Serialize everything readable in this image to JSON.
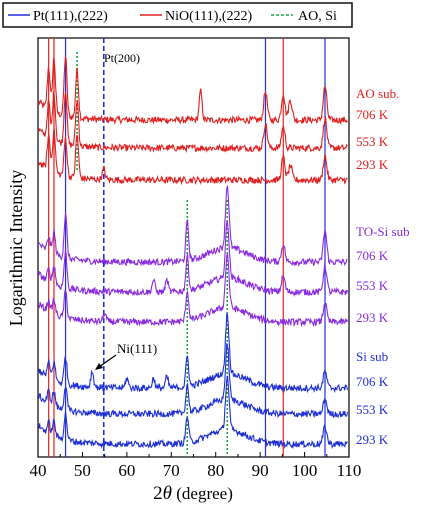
{
  "chart_data": {
    "type": "line",
    "xlabel_prefix": "2",
    "xlabel_symbol": "θ",
    "xlabel_suffix": " (degree)",
    "ylabel": "Logarithmic  Intensity",
    "xlim": [
      40,
      110
    ],
    "xticks": [
      40,
      50,
      60,
      70,
      80,
      90,
      100,
      110
    ],
    "y_scale": "log (arbitrary, offset traces)",
    "legend": [
      {
        "label": "Pt(111),(222)",
        "color": "#1f2fd6",
        "style": "solid"
      },
      {
        "label": "NiO(111),(222)",
        "color": "#e02020",
        "style": "solid"
      },
      {
        "label": "AO, Si",
        "color": "#1aa34a",
        "style": "dashed"
      }
    ],
    "reference_lines": [
      {
        "x": 46.2,
        "color": "#1f2fd6",
        "style": "solid",
        "group": "Pt(111),(222)"
      },
      {
        "x": 91.2,
        "color": "#1f2fd6",
        "style": "solid",
        "group": "Pt(111),(222)"
      },
      {
        "x": 104.6,
        "color": "#1f2fd6",
        "style": "solid",
        "group": "Pt(111),(222)"
      },
      {
        "x": 54.8,
        "color": "#1f2fd6",
        "style": "dashed",
        "group": "Pt(200)"
      },
      {
        "x": 42.4,
        "color": "#e02020",
        "style": "solid",
        "group": "NiO(111),(222)"
      },
      {
        "x": 43.6,
        "color": "#e02020",
        "style": "solid",
        "group": "NiO(111),(222)"
      },
      {
        "x": 95.2,
        "color": "#e02020",
        "style": "solid",
        "group": "NiO(111),(222)"
      },
      {
        "x": 48.8,
        "color": "#1aa34a",
        "style": "dashed",
        "group": "AO, Si"
      },
      {
        "x": 73.6,
        "color": "#1aa34a",
        "style": "dashed",
        "group": "AO, Si"
      },
      {
        "x": 82.6,
        "color": "#1aa34a",
        "style": "dashed",
        "group": "AO, Si"
      }
    ],
    "annotations": [
      {
        "text": "Pt(200)",
        "x": 54.8
      },
      {
        "text": "Ni(111)",
        "x": 52.2,
        "arrow": true
      }
    ],
    "groups": [
      {
        "name": "AO sub.",
        "color": "#e02020",
        "traces": [
          {
            "label": "706 K",
            "peaks": [
              [
                42.4,
                3.5
              ],
              [
                43.6,
                4.5
              ],
              [
                46.2,
                5.0
              ],
              [
                48.8,
                4.0
              ],
              [
                76.6,
                2.4
              ],
              [
                91.2,
                2.4
              ],
              [
                95.2,
                2.2
              ],
              [
                96.8,
                1.7
              ],
              [
                104.6,
                2.8
              ]
            ]
          },
          {
            "label": "553 K",
            "peaks": [
              [
                42.4,
                3.0
              ],
              [
                43.6,
                4.0
              ],
              [
                46.2,
                4.5
              ],
              [
                48.8,
                3.8
              ],
              [
                91.2,
                2.0
              ],
              [
                95.2,
                1.8
              ],
              [
                104.6,
                2.5
              ]
            ]
          },
          {
            "label": "293 K",
            "peaks": [
              [
                42.4,
                2.8
              ],
              [
                43.6,
                3.5
              ],
              [
                46.2,
                3.2
              ],
              [
                48.8,
                3.6
              ],
              [
                54.8,
                0.9
              ],
              [
                95.2,
                1.9
              ],
              [
                96.8,
                1.2
              ],
              [
                104.6,
                2.0
              ]
            ]
          }
        ]
      },
      {
        "name": "TO-Si  sub",
        "color": "#8a2be2",
        "traces": [
          {
            "label": "706 K",
            "peaks": [
              [
                42.4,
                1.2
              ],
              [
                43.6,
                1.8
              ],
              [
                46.2,
                3.6
              ],
              [
                73.6,
                3.2
              ],
              [
                82.6,
                5.2
              ],
              [
                95.2,
                1.5
              ],
              [
                104.6,
                2.6
              ]
            ]
          },
          {
            "label": "553 K",
            "peaks": [
              [
                42.4,
                1.0
              ],
              [
                43.6,
                1.5
              ],
              [
                46.2,
                3.0
              ],
              [
                66.0,
                1.0
              ],
              [
                69.0,
                1.0
              ],
              [
                73.6,
                2.8
              ],
              [
                82.6,
                4.8
              ],
              [
                95.2,
                1.3
              ],
              [
                104.6,
                2.2
              ]
            ]
          },
          {
            "label": "293 K",
            "peaks": [
              [
                42.4,
                0.9
              ],
              [
                43.6,
                1.2
              ],
              [
                46.2,
                2.2
              ],
              [
                55.0,
                0.7
              ],
              [
                73.6,
                2.5
              ],
              [
                82.6,
                4.5
              ],
              [
                104.6,
                1.6
              ]
            ]
          }
        ]
      },
      {
        "name": "Si sub",
        "color": "#1f2fd6",
        "traces": [
          {
            "label": "706 K",
            "peaks": [
              [
                42.4,
                1.2
              ],
              [
                43.6,
                1.5
              ],
              [
                46.2,
                2.3
              ],
              [
                52.2,
                1.3
              ],
              [
                60.0,
                0.8
              ],
              [
                66.0,
                0.8
              ],
              [
                69.0,
                0.9
              ],
              [
                73.6,
                2.5
              ],
              [
                82.6,
                5.0
              ],
              [
                104.6,
                1.4
              ]
            ]
          },
          {
            "label": "553 K",
            "peaks": [
              [
                42.4,
                1.0
              ],
              [
                43.6,
                1.2
              ],
              [
                46.2,
                2.0
              ],
              [
                73.6,
                2.3
              ],
              [
                82.6,
                4.6
              ],
              [
                104.6,
                1.3
              ]
            ]
          },
          {
            "label": "293 K",
            "peaks": [
              [
                42.4,
                0.9
              ],
              [
                43.6,
                1.2
              ],
              [
                46.2,
                2.2
              ],
              [
                73.6,
                2.2
              ],
              [
                82.6,
                4.4
              ],
              [
                104.6,
                1.5
              ]
            ]
          }
        ]
      }
    ]
  }
}
